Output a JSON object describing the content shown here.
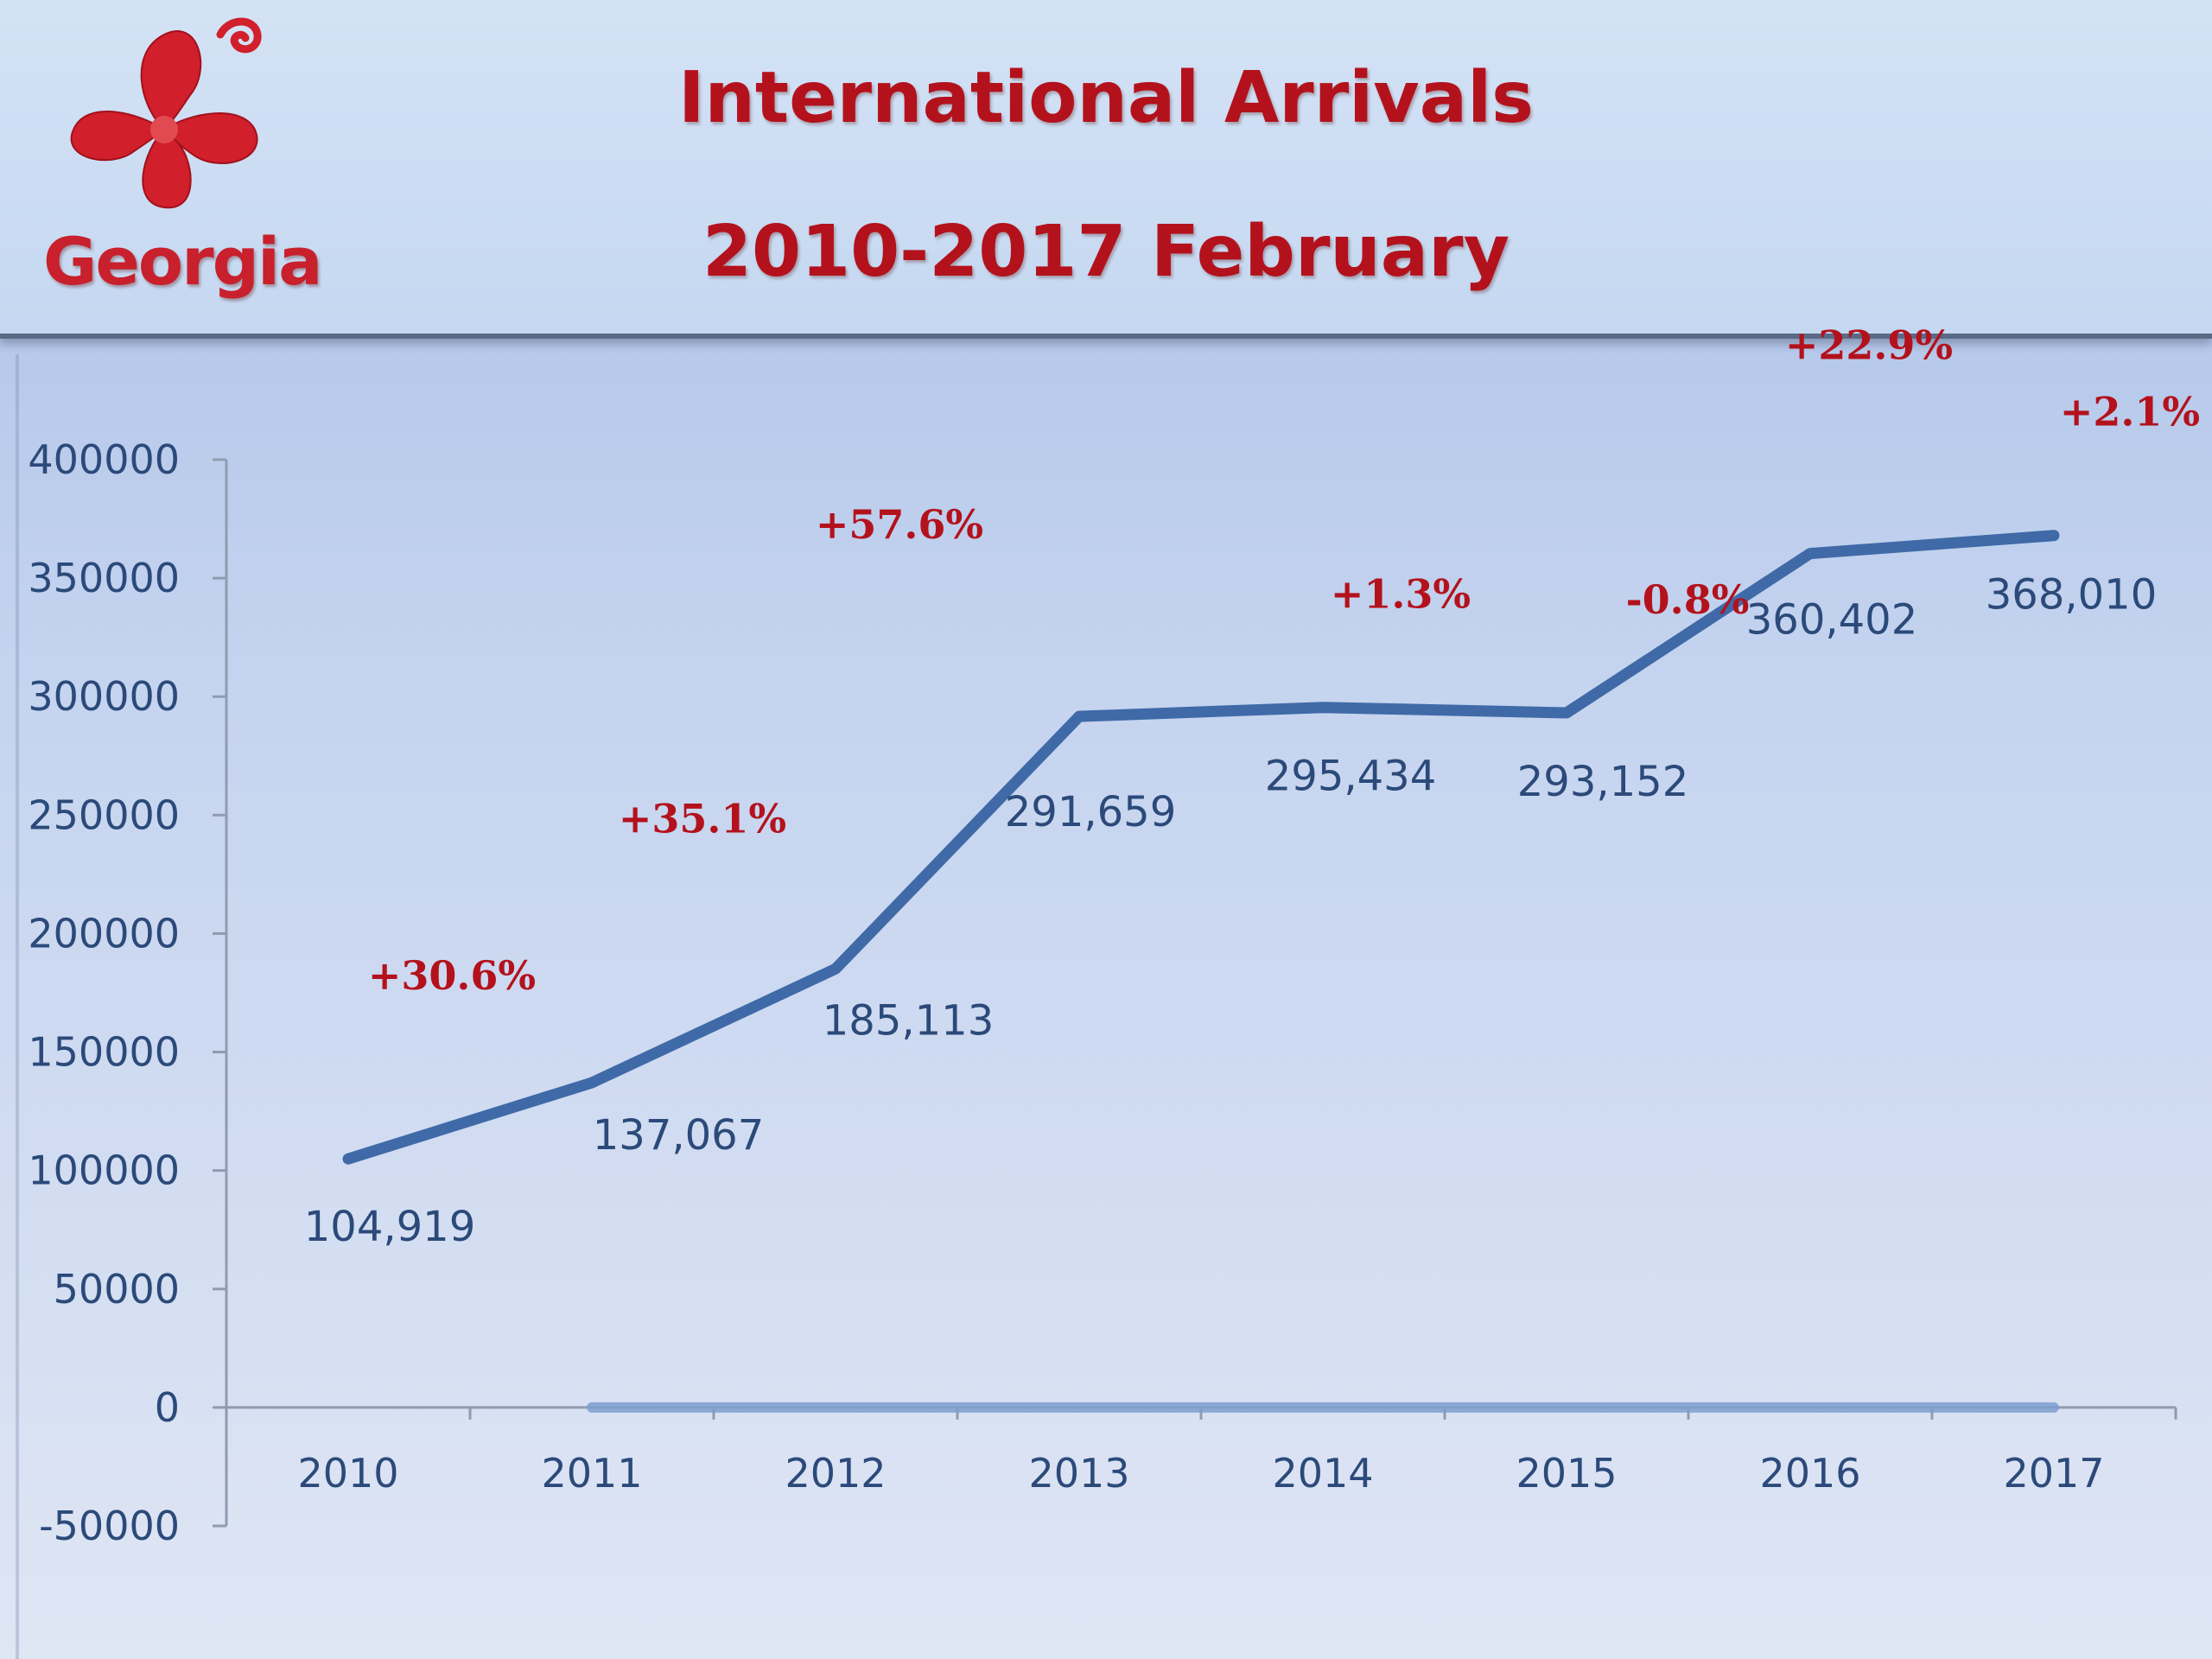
{
  "header": {
    "logo_text": "Georgia",
    "title_line1": "International Arrivals",
    "title_line2": "2010-2017 February"
  },
  "colors": {
    "title": "#b3121c",
    "series_line": "#4a73ad",
    "labels": "#2b4a7a",
    "growth_labels": "#b3121c",
    "logo": "#d11f2b"
  },
  "chart_data": {
    "type": "line",
    "title": "International Arrivals 2010-2017 February",
    "xlabel": "",
    "ylabel": "",
    "categories": [
      "2010",
      "2011",
      "2012",
      "2013",
      "2014",
      "2015",
      "2016",
      "2017"
    ],
    "series": [
      {
        "values": [
          104919,
          137067,
          185113,
          291659,
          295434,
          293152,
          360402,
          368010
        ],
        "value_labels": [
          "104,919",
          "137,067",
          "185,113",
          "291,659",
          "295,434",
          "293,152",
          "360,402",
          "368,010"
        ],
        "growth_labels": [
          "+30.6%",
          "+35.1%",
          "+57.6%",
          "+1.3%",
          "-0.8%",
          "+22.9%",
          "+2.1%"
        ]
      }
    ],
    "y_ticks": [
      -50000,
      0,
      50000,
      100000,
      150000,
      200000,
      250000,
      300000,
      350000,
      400000
    ],
    "ylim": [
      -50000,
      400000
    ],
    "grid": false,
    "legend": "none"
  }
}
